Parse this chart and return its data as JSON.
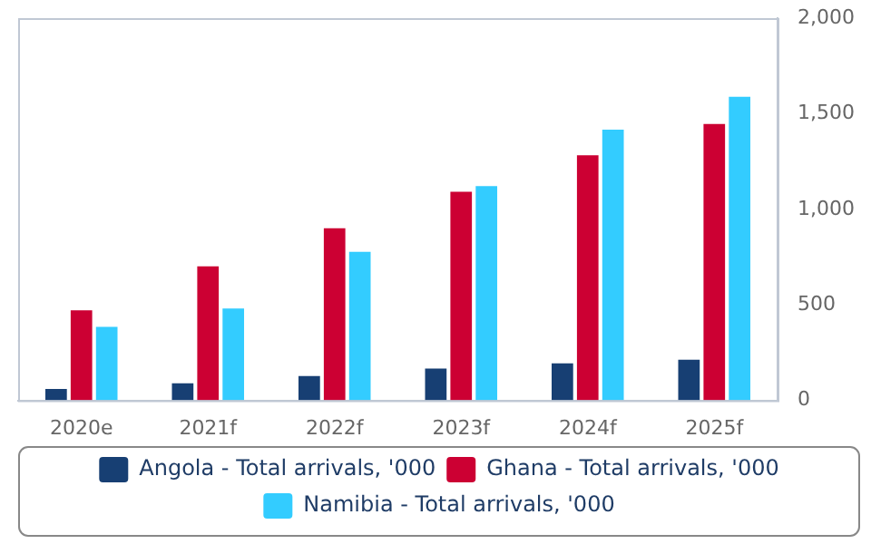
{
  "chart_data": {
    "type": "bar",
    "categories": [
      "2020e",
      "2021f",
      "2022f",
      "2023f",
      "2024f",
      "2025f"
    ],
    "series": [
      {
        "name": "Angola - Total arrivals, '000",
        "color": "#173f73",
        "values": [
          60,
          89,
          127,
          166,
          194,
          213
        ]
      },
      {
        "name": "Ghana - Total arrivals, '000",
        "color": "#cc0033",
        "values": [
          471,
          701,
          901,
          1092,
          1283,
          1446
        ]
      },
      {
        "name": "Namibia - Total arrivals, '000",
        "color": "#33ccff",
        "values": [
          385,
          481,
          777,
          1121,
          1417,
          1589
        ]
      }
    ],
    "ylim": [
      0,
      2000
    ],
    "yticks": [
      {
        "value": 0,
        "label": "0"
      },
      {
        "value": 500,
        "label": "500"
      },
      {
        "value": 1000,
        "label": "1,000"
      },
      {
        "value": 1500,
        "label": "1,500"
      },
      {
        "value": 2000,
        "label": "2,000"
      }
    ],
    "grid": false,
    "legend": "bottom"
  }
}
